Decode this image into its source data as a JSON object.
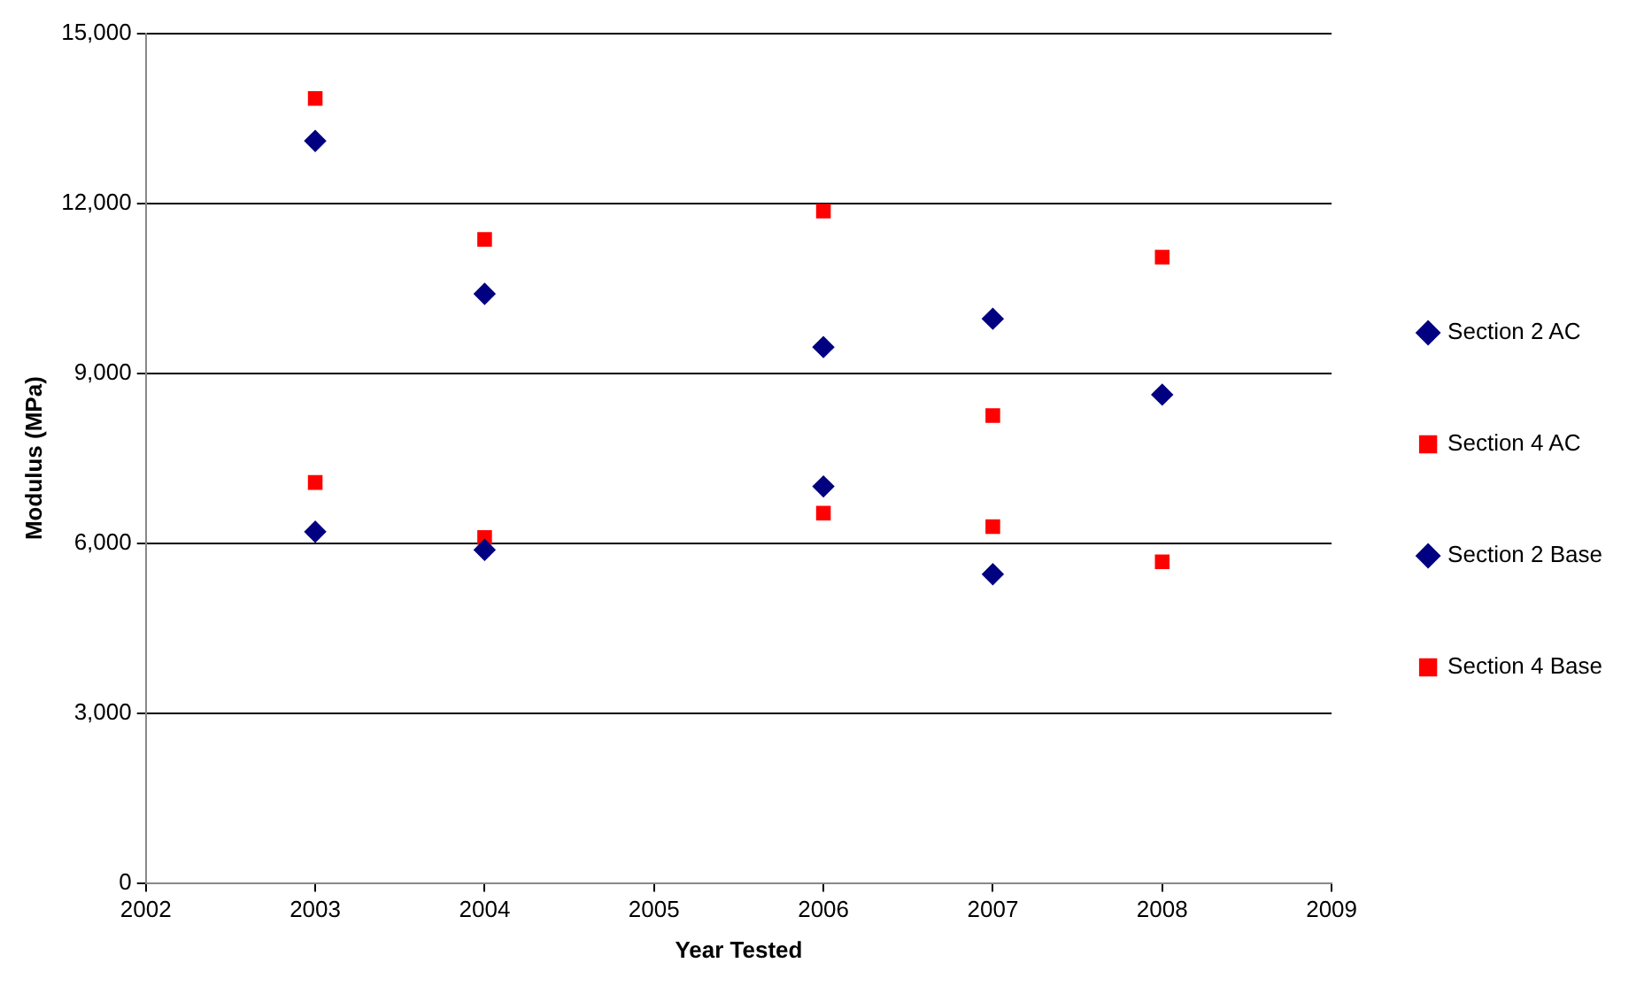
{
  "chart_data": {
    "type": "scatter",
    "xlabel": "Year Tested",
    "ylabel": "Modulus (MPa)",
    "xlim": [
      2002,
      2009
    ],
    "xticks": [
      2002,
      2003,
      2004,
      2005,
      2006,
      2007,
      2008,
      2009
    ],
    "ylim": [
      0,
      15000
    ],
    "yticks": [
      {
        "value": 0,
        "label": "0"
      },
      {
        "value": 3000,
        "label": "3,000"
      },
      {
        "value": 6000,
        "label": "6,000"
      },
      {
        "value": 9000,
        "label": "9,000"
      },
      {
        "value": 12000,
        "label": "12,000"
      },
      {
        "value": 15000,
        "label": "15,000"
      }
    ],
    "grid": "y",
    "legend": "right",
    "series": [
      {
        "name": "Section 2 AC",
        "color": "#000080",
        "marker": "diamond",
        "x": [
          2003,
          2004,
          2006,
          2007
        ],
        "values": [
          6200,
          5880,
          7000,
          5450
        ]
      },
      {
        "name": "Section 4 AC",
        "color": "#ff0000",
        "marker": "square",
        "x": [
          2003,
          2004,
          2006,
          2007,
          2008
        ],
        "values": [
          7070,
          6100,
          6530,
          6290,
          5670
        ]
      },
      {
        "name": "Section 2 Base",
        "color": "#000080",
        "marker": "diamond",
        "x": [
          2003,
          2004,
          2006,
          2007,
          2008
        ],
        "values": [
          13100,
          10400,
          9460,
          9960,
          8620
        ]
      },
      {
        "name": "Section 4 Base",
        "color": "#ff0000",
        "marker": "square",
        "x": [
          2003,
          2004,
          2006,
          2007,
          2008
        ],
        "values": [
          13850,
          11360,
          11860,
          8250,
          11050
        ]
      }
    ]
  }
}
